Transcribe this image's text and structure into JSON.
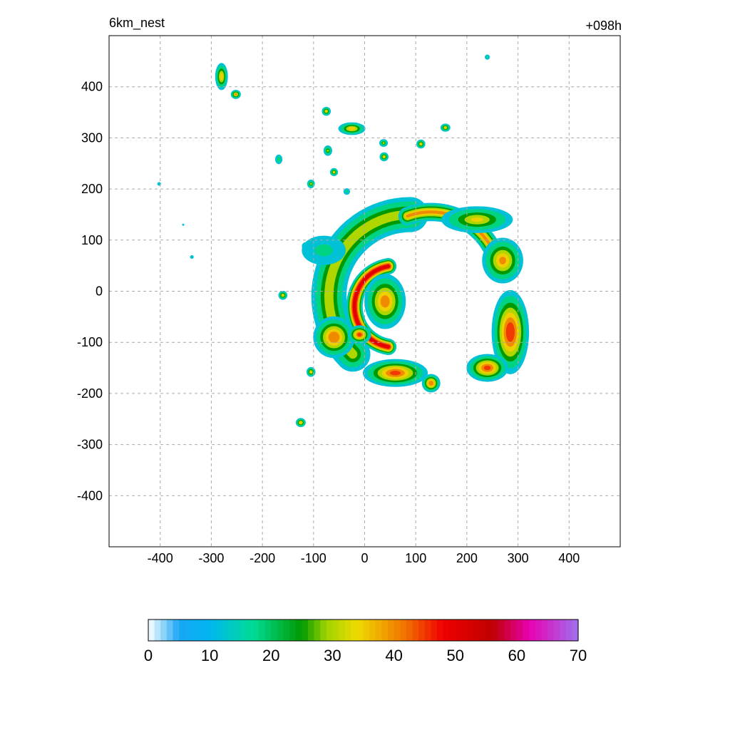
{
  "chart_data": {
    "type": "heatmap",
    "title": "6km_nest",
    "subtitle": "+098h",
    "xlabel": "",
    "ylabel": "",
    "xlim": [
      -500,
      500
    ],
    "ylim": [
      -500,
      500
    ],
    "xticks": [
      -400,
      -300,
      -200,
      -100,
      0,
      100,
      200,
      300,
      400
    ],
    "yticks": [
      400,
      300,
      200,
      100,
      0,
      -100,
      -200,
      -300,
      -400
    ],
    "grid": true,
    "colorbar": {
      "min": 0,
      "max": 70,
      "ticks": [
        0,
        10,
        20,
        30,
        40,
        50,
        60,
        70
      ],
      "stops": [
        {
          "v": 0,
          "c": "#ffffff"
        },
        {
          "v": 5,
          "c": "#1aa6f5"
        },
        {
          "v": 10,
          "c": "#00b6f0"
        },
        {
          "v": 17,
          "c": "#00dc96"
        },
        {
          "v": 25,
          "c": "#009a00"
        },
        {
          "v": 29,
          "c": "#a0d400"
        },
        {
          "v": 34,
          "c": "#eedc00"
        },
        {
          "v": 42,
          "c": "#f07000"
        },
        {
          "v": 48,
          "c": "#f00000"
        },
        {
          "v": 56,
          "c": "#c00000"
        },
        {
          "v": 62,
          "c": "#e800b0"
        },
        {
          "v": 70,
          "c": "#a070f0"
        }
      ]
    },
    "features": [
      {
        "kind": "blob",
        "x": -280,
        "y": 420,
        "rx": 14,
        "ry": 30,
        "peak": 38
      },
      {
        "kind": "blob",
        "x": -252,
        "y": 385,
        "rx": 11,
        "ry": 10,
        "peak": 40
      },
      {
        "kind": "blob",
        "x": -75,
        "y": 352,
        "rx": 10,
        "ry": 10,
        "peak": 36
      },
      {
        "kind": "blob",
        "x": -25,
        "y": 318,
        "rx": 30,
        "ry": 14,
        "peak": 38
      },
      {
        "kind": "blob",
        "x": -72,
        "y": 275,
        "rx": 10,
        "ry": 12,
        "peak": 30
      },
      {
        "kind": "blob",
        "x": -168,
        "y": 258,
        "rx": 9,
        "ry": 12,
        "peak": 24
      },
      {
        "kind": "blob",
        "x": -60,
        "y": 233,
        "rx": 9,
        "ry": 9,
        "peak": 35
      },
      {
        "kind": "blob",
        "x": -105,
        "y": 210,
        "rx": 9,
        "ry": 10,
        "peak": 30
      },
      {
        "kind": "blob",
        "x": -35,
        "y": 195,
        "rx": 9,
        "ry": 9,
        "peak": 20
      },
      {
        "kind": "blob",
        "x": 37,
        "y": 290,
        "rx": 10,
        "ry": 9,
        "peak": 30
      },
      {
        "kind": "blob",
        "x": 38,
        "y": 263,
        "rx": 10,
        "ry": 10,
        "peak": 36
      },
      {
        "kind": "blob",
        "x": 110,
        "y": 288,
        "rx": 10,
        "ry": 10,
        "peak": 36
      },
      {
        "kind": "blob",
        "x": 158,
        "y": 320,
        "rx": 11,
        "ry": 9,
        "peak": 36
      },
      {
        "kind": "blob",
        "x": 240,
        "y": 458,
        "rx": 7,
        "ry": 7,
        "peak": 20
      },
      {
        "kind": "blob",
        "x": -402,
        "y": 210,
        "rx": 7,
        "ry": 7,
        "peak": 15
      },
      {
        "kind": "blob",
        "x": -355,
        "y": 130,
        "rx": 5,
        "ry": 5,
        "peak": 12
      },
      {
        "kind": "blob",
        "x": -338,
        "y": 67,
        "rx": 7,
        "ry": 7,
        "peak": 15
      },
      {
        "kind": "blob",
        "x": -115,
        "y": 88,
        "rx": 9,
        "ry": 9,
        "peak": 35
      },
      {
        "kind": "blob",
        "x": -160,
        "y": -8,
        "rx": 10,
        "ry": 10,
        "peak": 36
      },
      {
        "kind": "blob",
        "x": -105,
        "y": -158,
        "rx": 10,
        "ry": 11,
        "peak": 36
      },
      {
        "kind": "blob",
        "x": -125,
        "y": -257,
        "rx": 11,
        "ry": 10,
        "peak": 38
      },
      {
        "kind": "arc",
        "cx": 90,
        "cy": -10,
        "r": 160,
        "rw": 80,
        "a0": 90,
        "a1": 225,
        "peak": 32
      },
      {
        "kind": "arc",
        "cx": 60,
        "cy": -30,
        "r": 80,
        "rw": 35,
        "a0": 100,
        "a1": 260,
        "peak": 52
      },
      {
        "kind": "blob",
        "x": 40,
        "y": -20,
        "rx": 45,
        "ry": 60,
        "peak": 42
      },
      {
        "kind": "arc",
        "cx": 130,
        "cy": 20,
        "r": 135,
        "rw": 40,
        "a0": 20,
        "a1": 110,
        "peak": 40
      },
      {
        "kind": "blob",
        "x": 220,
        "y": 140,
        "rx": 80,
        "ry": 30,
        "peak": 35
      },
      {
        "kind": "blob",
        "x": 270,
        "y": 60,
        "rx": 45,
        "ry": 50,
        "peak": 40
      },
      {
        "kind": "blob",
        "x": 285,
        "y": -80,
        "rx": 40,
        "ry": 90,
        "peak": 48
      },
      {
        "kind": "blob",
        "x": 240,
        "y": -150,
        "rx": 45,
        "ry": 30,
        "peak": 45
      },
      {
        "kind": "blob",
        "x": -60,
        "y": -90,
        "rx": 45,
        "ry": 45,
        "peak": 44
      },
      {
        "kind": "blob",
        "x": -10,
        "y": -85,
        "rx": 25,
        "ry": 20,
        "peak": 46
      },
      {
        "kind": "blob",
        "x": 60,
        "y": -160,
        "rx": 70,
        "ry": 30,
        "peak": 45
      },
      {
        "kind": "blob",
        "x": 130,
        "y": -180,
        "rx": 20,
        "ry": 20,
        "peak": 44
      },
      {
        "kind": "blob",
        "x": -80,
        "y": 80,
        "rx": 60,
        "ry": 40,
        "peak": 20
      }
    ]
  }
}
